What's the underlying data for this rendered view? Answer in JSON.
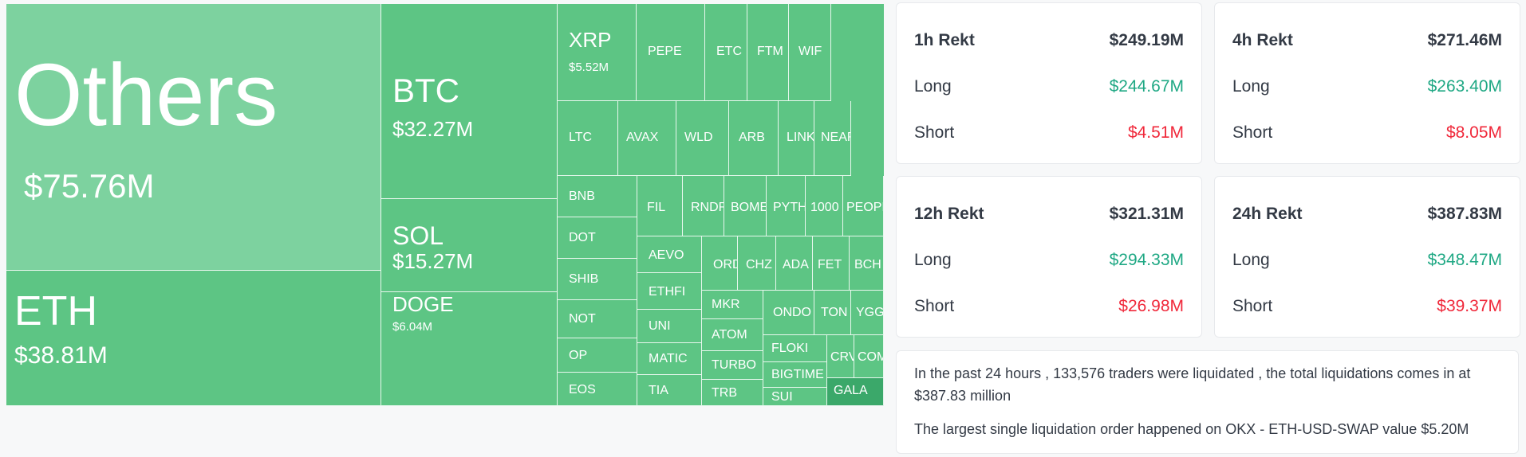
{
  "treemap": {
    "colors": {
      "default": "#5dc584",
      "light": "#7dd29f",
      "dark": "#3ba86a",
      "text": "#ffffff"
    },
    "cells": [
      {
        "id": "others",
        "name": "Others",
        "value": "$75.76M",
        "light": true
      },
      {
        "id": "eth",
        "name": "ETH",
        "value": "$38.81M"
      },
      {
        "id": "btc",
        "name": "BTC",
        "value": "$32.27M"
      },
      {
        "id": "sol",
        "name": "SOL",
        "value": "$15.27M"
      },
      {
        "id": "doge",
        "name": "DOGE",
        "value": "$6.04M"
      },
      {
        "id": "xrp",
        "name": "XRP",
        "value": "$5.52M"
      },
      {
        "id": "pepe",
        "name": "PEPE"
      },
      {
        "id": "etc",
        "name": "ETC"
      },
      {
        "id": "ftm",
        "name": "FTM"
      },
      {
        "id": "wif",
        "name": "WIF"
      },
      {
        "id": "ltc",
        "name": "LTC"
      },
      {
        "id": "avax",
        "name": "AVAX"
      },
      {
        "id": "wld",
        "name": "WLD"
      },
      {
        "id": "arb",
        "name": "ARB"
      },
      {
        "id": "link",
        "name": "LINK"
      },
      {
        "id": "near",
        "name": "NEAR"
      },
      {
        "id": "bnb",
        "name": "BNB"
      },
      {
        "id": "dot",
        "name": "DOT"
      },
      {
        "id": "shib",
        "name": "SHIB"
      },
      {
        "id": "not",
        "name": "NOT"
      },
      {
        "id": "op",
        "name": "OP"
      },
      {
        "id": "eos",
        "name": "EOS"
      },
      {
        "id": "fil",
        "name": "FIL"
      },
      {
        "id": "rndr",
        "name": "RNDR"
      },
      {
        "id": "bome",
        "name": "BOME"
      },
      {
        "id": "pyth",
        "name": "PYTH"
      },
      {
        "id": "1000",
        "name": "1000"
      },
      {
        "id": "people",
        "name": "PEOPLE"
      },
      {
        "id": "aevo",
        "name": "AEVO"
      },
      {
        "id": "ordi",
        "name": "ORDI"
      },
      {
        "id": "chz",
        "name": "CHZ"
      },
      {
        "id": "ada",
        "name": "ADA"
      },
      {
        "id": "fet",
        "name": "FET"
      },
      {
        "id": "bch",
        "name": "BCH"
      },
      {
        "id": "ethfi",
        "name": "ETHFI"
      },
      {
        "id": "mkr",
        "name": "MKR"
      },
      {
        "id": "ondo",
        "name": "ONDO"
      },
      {
        "id": "ton",
        "name": "TON"
      },
      {
        "id": "ygg",
        "name": "YGG"
      },
      {
        "id": "uni",
        "name": "UNI"
      },
      {
        "id": "atom",
        "name": "ATOM"
      },
      {
        "id": "matic",
        "name": "MATIC"
      },
      {
        "id": "turbo",
        "name": "TURBO"
      },
      {
        "id": "floki",
        "name": "FLOKI"
      },
      {
        "id": "crv",
        "name": "CRV"
      },
      {
        "id": "comp",
        "name": "COMP"
      },
      {
        "id": "bigtime",
        "name": "BIGTIME"
      },
      {
        "id": "tia",
        "name": "TIA"
      },
      {
        "id": "trb",
        "name": "TRB"
      },
      {
        "id": "sui",
        "name": "SUI"
      },
      {
        "id": "gala",
        "name": "GALA",
        "dark": true
      }
    ]
  },
  "stats": {
    "colors": {
      "long": "#1fa884",
      "short": "#f0283a",
      "text": "#333a45"
    },
    "cards": [
      {
        "title": "1h Rekt",
        "total": "$249.19M",
        "long_label": "Long",
        "long": "$244.67M",
        "short_label": "Short",
        "short": "$4.51M"
      },
      {
        "title": "4h Rekt",
        "total": "$271.46M",
        "long_label": "Long",
        "long": "$263.40M",
        "short_label": "Short",
        "short": "$8.05M"
      },
      {
        "title": "12h Rekt",
        "total": "$321.31M",
        "long_label": "Long",
        "long": "$294.33M",
        "short_label": "Short",
        "short": "$26.98M"
      },
      {
        "title": "24h Rekt",
        "total": "$387.83M",
        "long_label": "Long",
        "long": "$348.47M",
        "short_label": "Short",
        "short": "$39.37M"
      }
    ]
  },
  "summary": {
    "line1": "In the past 24 hours , 133,576 traders were liquidated , the total liquidations comes in at $387.83 million",
    "line2": "The largest single liquidation order happened on OKX - ETH-USD-SWAP value $5.20M"
  }
}
